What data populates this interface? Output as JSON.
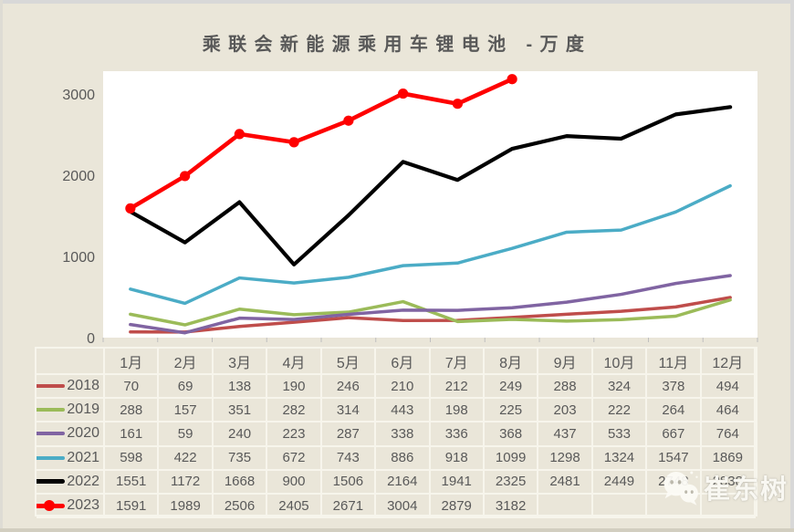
{
  "title": "乘联会新能源乘用车锂电池 -万度",
  "watermark": {
    "text": "崔东树",
    "icon": "wechat-icon"
  },
  "colors": {
    "background": "#eae6d9",
    "plot_background": "#ffffff",
    "text": "#595959",
    "table_border": "#f7f5ec",
    "axis_tick": "#bfbfbf"
  },
  "chart_data": {
    "type": "line",
    "title": "乘联会新能源乘用车锂电池 -万度",
    "categories": [
      "1月",
      "2月",
      "3月",
      "4月",
      "5月",
      "6月",
      "7月",
      "8月",
      "9月",
      "10月",
      "11月",
      "12月"
    ],
    "series": [
      {
        "name": "2018",
        "color": "#bf4d4b",
        "line_width": 3.5,
        "marker": false,
        "values": [
          70,
          69,
          138,
          190,
          246,
          210,
          212,
          249,
          288,
          324,
          378,
          494
        ]
      },
      {
        "name": "2019",
        "color": "#9bbb59",
        "line_width": 3.5,
        "marker": false,
        "values": [
          288,
          157,
          351,
          282,
          314,
          443,
          198,
          225,
          203,
          222,
          264,
          464
        ]
      },
      {
        "name": "2020",
        "color": "#8064a2",
        "line_width": 3.5,
        "marker": false,
        "values": [
          161,
          59,
          240,
          223,
          287,
          338,
          336,
          368,
          437,
          533,
          667,
          764
        ]
      },
      {
        "name": "2021",
        "color": "#4bacc6",
        "line_width": 3.5,
        "marker": false,
        "values": [
          598,
          422,
          735,
          672,
          743,
          886,
          918,
          1099,
          1298,
          1324,
          1547,
          1869
        ]
      },
      {
        "name": "2022",
        "color": "#000000",
        "line_width": 4.2,
        "marker": false,
        "values": [
          1551,
          1172,
          1668,
          900,
          1506,
          2164,
          1941,
          2325,
          2481,
          2449,
          2748,
          2838
        ]
      },
      {
        "name": "2023",
        "color": "#fe0000",
        "line_width": 4.6,
        "marker": true,
        "values": [
          1591,
          1989,
          2506,
          2405,
          2671,
          3004,
          2879,
          3182,
          null,
          null,
          null,
          null
        ]
      }
    ],
    "y_ticks": [
      0,
      1000,
      2000,
      3000
    ],
    "ylim": [
      0,
      3280
    ],
    "grid": false,
    "legend_position": "table-left-column",
    "xlabel": "",
    "ylabel": ""
  }
}
